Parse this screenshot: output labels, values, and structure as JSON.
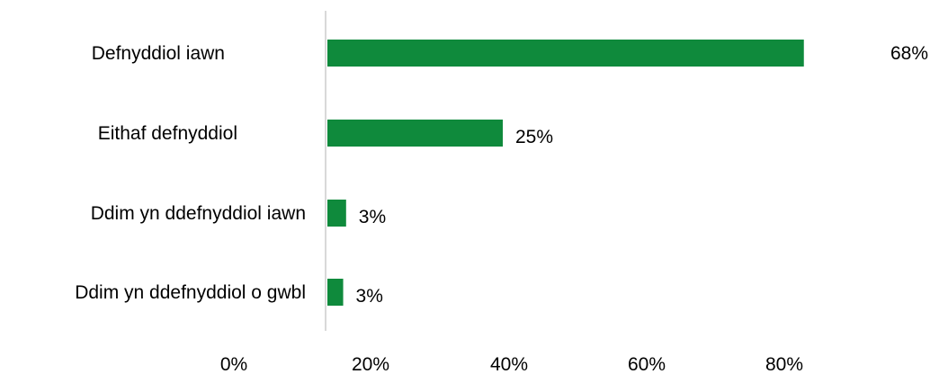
{
  "chart_data": {
    "type": "bar",
    "orientation": "horizontal",
    "categories": [
      "Defnyddiol iawn",
      "Eithaf defnyddiol",
      "Ddim yn ddefnyddiol iawn",
      "Ddim yn ddefnyddiol o gwbl"
    ],
    "values": [
      68,
      25,
      3,
      3
    ],
    "bar_lengths": [
      81.5,
      30,
      3.2,
      2.7
    ],
    "data_labels": [
      "68%",
      "25%",
      "3%",
      "3%"
    ],
    "x_ticks": [
      "0%",
      "20%",
      "40%",
      "60%",
      "80%"
    ],
    "xlim": [
      0,
      100
    ],
    "bar_color": "#0f8a3c",
    "axis_color": "#d9d9d9",
    "grid": false,
    "legend": "none"
  }
}
